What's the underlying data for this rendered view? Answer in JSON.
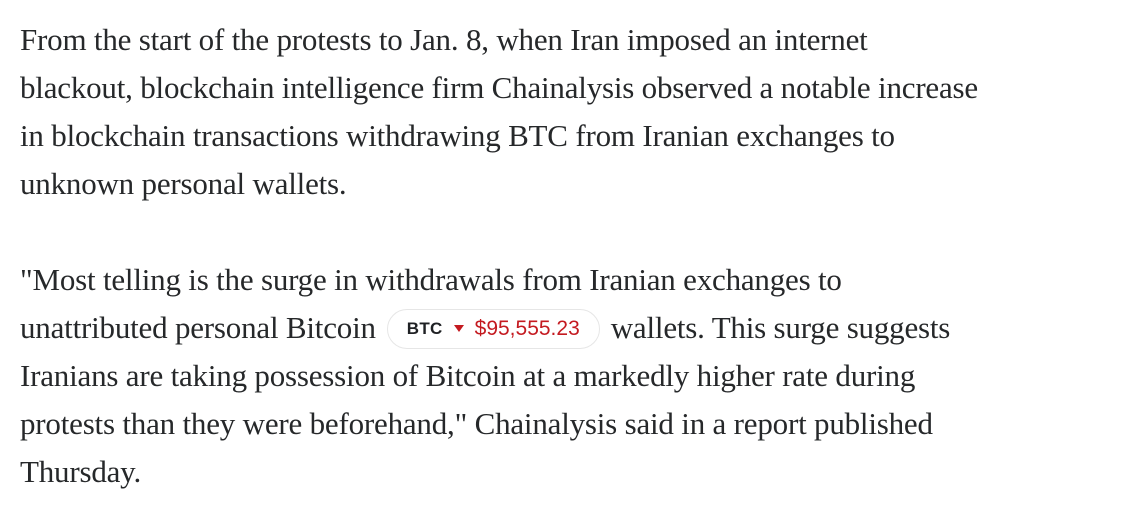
{
  "page": {
    "background": "#ffffff"
  },
  "colors": {
    "text": "#26282a",
    "price_down": "#c41a20",
    "badge_border": "#e6e6e6",
    "badge_symbol": "#1f2124"
  },
  "article": {
    "paragraph1": {
      "lines": [
        "From the start of the protests to Jan. 8, when Iran imposed an internet",
        "blackout, blockchain intelligence firm Chainalysis observed a notable increase",
        "in blockchain transactions withdrawing BTC from Iranian exchanges to",
        "unknown personal wallets."
      ]
    },
    "paragraph2": {
      "line1": "\"Most telling is the surge in withdrawals from Iranian exchanges to",
      "line2_before": "unattributed personal Bitcoin",
      "line2_after": "wallets. This surge suggests",
      "line3": "Iranians are taking possession of Bitcoin at a markedly higher rate during",
      "line4": "protests than they were beforehand,\" Chainalysis said in a report published",
      "line5": "Thursday.",
      "ticker": {
        "symbol": "BTC",
        "price": "$95,555.23",
        "direction": "down"
      }
    }
  }
}
